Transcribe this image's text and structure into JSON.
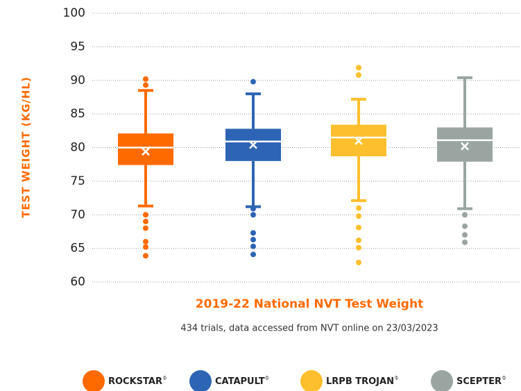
{
  "chart_data": {
    "type": "box",
    "title": "2019-22 National NVT Test Weight",
    "subtitle": "434 trials, data accessed from NVT online on 23/03/2023",
    "y_label": "TEST WEIGHT (KG/HL)",
    "pbr_mark": "⌽",
    "ylim": [
      60,
      100
    ],
    "yticks": [
      60,
      65,
      70,
      75,
      80,
      85,
      90,
      95,
      100
    ],
    "grid": true,
    "series": [
      {
        "name": "ROCKSTAR",
        "color": "#ff6a00",
        "whisker_low": 71.3,
        "q1": 77.4,
        "median": 80,
        "q3": 82.1,
        "whisker_high": 88.5,
        "mean": 79.4,
        "outliers": [
          90.2,
          89.3,
          70,
          69,
          68,
          66,
          65.2,
          63.9
        ]
      },
      {
        "name": "CATAPULT",
        "color": "#2e64b4",
        "whisker_low": 71.2,
        "q1": 78,
        "median": 80.9,
        "q3": 82.8,
        "whisker_high": 88,
        "mean": 80.4,
        "outliers": [
          89.8,
          70.9,
          70,
          67.3,
          66.3,
          65.3,
          64.1
        ]
      },
      {
        "name": "LRPB TROJAN",
        "color": "#fdbf2d",
        "whisker_low": 72.1,
        "q1": 78.7,
        "median": 81.5,
        "q3": 83.4,
        "whisker_high": 87.2,
        "mean": 81,
        "outliers": [
          91.9,
          90.8,
          71,
          69.8,
          68.1,
          66.2,
          65.1,
          62.9
        ]
      },
      {
        "name": "SCEPTER",
        "color": "#9aa5a1",
        "whisker_low": 70.9,
        "q1": 77.9,
        "median": 81.1,
        "q3": 83,
        "whisker_high": 90.4,
        "mean": 80.2,
        "outliers": [
          70,
          68.3,
          67,
          65.9
        ]
      }
    ]
  }
}
